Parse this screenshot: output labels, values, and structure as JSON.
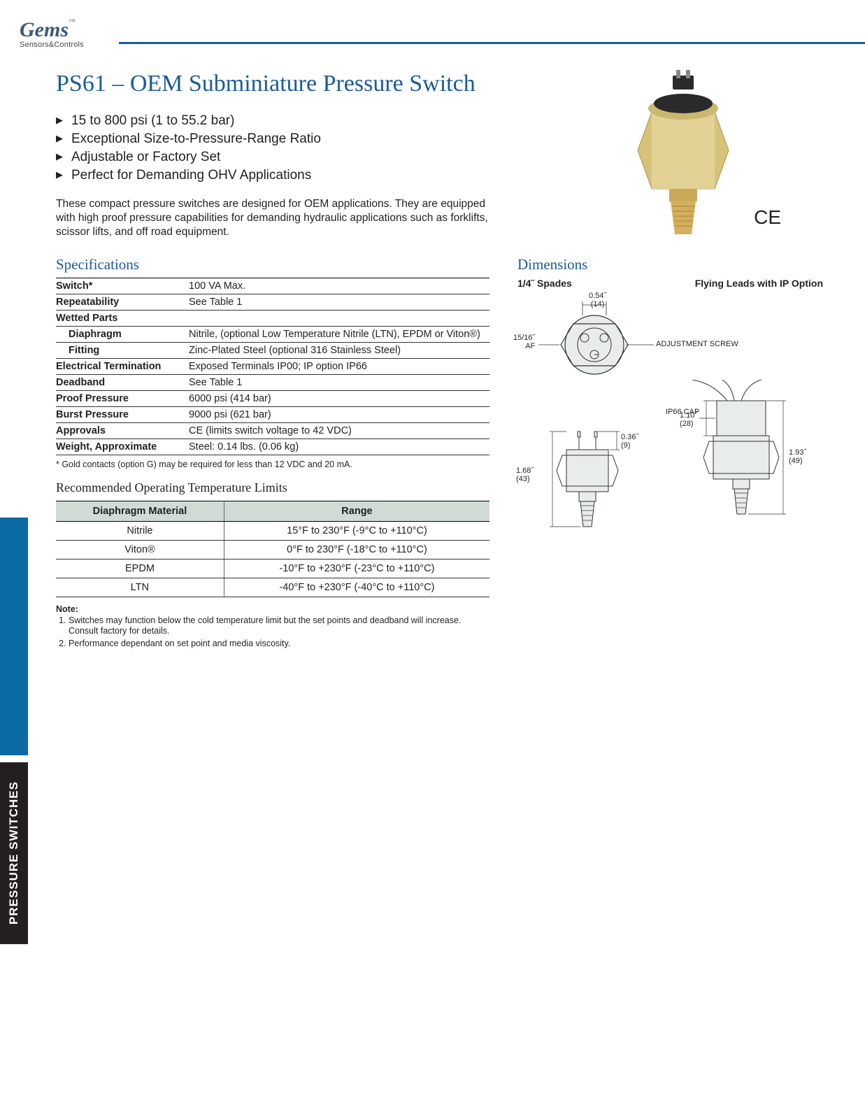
{
  "logo": {
    "brand": "Gems",
    "sub": "Sensors&Controls"
  },
  "title": "PS61 – OEM Subminiature Pressure Switch",
  "bullets": [
    "15 to 800 psi (1 to 55.2 bar)",
    "Exceptional Size-to-Pressure-Range Ratio",
    "Adjustable or Factory Set",
    "Perfect for Demanding OHV Applications"
  ],
  "intro": "These compact pressure switches are designed for OEM applications. They are equipped with high proof pressure capabilities for demanding hydraulic applications such as forklifts, scissor lifts, and off road equipment.",
  "ce_mark": "CE",
  "specs_heading": "Specifications",
  "specs": [
    {
      "label": "Switch*",
      "value": "100 VA Max.",
      "indent": false
    },
    {
      "label": "Repeatability",
      "value": "See Table 1",
      "indent": false
    },
    {
      "label": "Wetted Parts",
      "value": "",
      "indent": false
    },
    {
      "label": "Diaphragm",
      "value": "Nitrile, (optional Low Temperature Nitrile (LTN), EPDM or Viton®)",
      "indent": true
    },
    {
      "label": "Fitting",
      "value": "Zinc-Plated Steel (optional 316 Stainless Steel)",
      "indent": true
    },
    {
      "label": "Electrical Termination",
      "value": "Exposed Terminals IP00; IP option IP66",
      "indent": false
    },
    {
      "label": "Deadband",
      "value": "See Table 1",
      "indent": false
    },
    {
      "label": "Proof Pressure",
      "value": "6000 psi (414 bar)",
      "indent": false
    },
    {
      "label": "Burst Pressure",
      "value": "9000 psi (621 bar)",
      "indent": false
    },
    {
      "label": "Approvals",
      "value": "CE (limits switch voltage to 42 VDC)",
      "indent": false
    },
    {
      "label": "Weight, Approximate",
      "value": "Steel: 0.14 lbs. (0.06 kg)",
      "indent": false
    }
  ],
  "spec_footnote": "* Gold contacts (option G) may be required for less than 12 VDC and 20 mA.",
  "temp_heading": "Recommended Operating Temperature Limits",
  "temp_columns": [
    "Diaphragm Material",
    "Range"
  ],
  "temp_rows": [
    [
      "Nitrile",
      "15°F to 230°F (-9°C to +110°C)"
    ],
    [
      "Viton®",
      "0°F to 230°F (-18°C to +110°C)"
    ],
    [
      "EPDM",
      "-10°F to +230°F (-23°C to +110°C)"
    ],
    [
      "LTN",
      "-40°F to +230°F (-40°C to +110°C)"
    ]
  ],
  "notes_label": "Note:",
  "notes": [
    "Switches may function below the cold temperature limit but the set points and deadband will increase. Consult factory for details.",
    "Performance dependant on set point and media viscosity."
  ],
  "dimensions_heading": "Dimensions",
  "dim_label_left": "1/4˝ Spades",
  "dim_label_right": "Flying Leads with IP Option",
  "dim_callouts": {
    "d1": "0.54˝\n(14)",
    "d2": "15/16˝\nAF",
    "d3": "ADJUSTMENT SCREW",
    "d4": "IP66 CAP",
    "d5": "1.68˝\n(43)",
    "d6": "0.36˝\n(9)",
    "d7": "1.10˝\n(28)",
    "d8": "1.93˝\n(49)"
  },
  "side_tab": "PRESSURE SWITCHES",
  "colors": {
    "brand_blue": "#1b5a99",
    "tab_blue": "#0a6aa3",
    "table_header_bg": "#d0dbd6",
    "text": "#231f20"
  }
}
